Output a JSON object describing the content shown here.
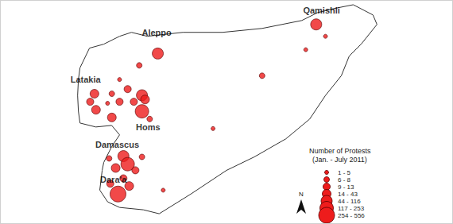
{
  "chart_data": {
    "type": "bubble_map",
    "legend_title": [
      "Number of Protests",
      "(Jan. - July 2011)"
    ],
    "size_classes": [
      "1 - 5",
      "6 - 8",
      "9 - 13",
      "14 - 43",
      "44 - 116",
      "117 - 253",
      "254 - 556"
    ],
    "color": "#ee1c1c",
    "tick_labels": false,
    "north_label": "N",
    "cities": [
      {
        "name": "Qamishli",
        "lon": 41.37,
        "lat": 37.42
      },
      {
        "name": "Aleppo",
        "lon": 37.1,
        "lat": 36.84
      },
      {
        "name": "Latakia",
        "lon": 35.26,
        "lat": 35.61
      },
      {
        "name": "Homs",
        "lon": 36.88,
        "lat": 34.37
      },
      {
        "name": "Damascus",
        "lon": 36.08,
        "lat": 33.92
      },
      {
        "name": "Dara'a",
        "lon": 35.98,
        "lat": 32.99
      }
    ],
    "points": [
      {
        "lon": 41.23,
        "lat": 37.05,
        "bin": "44 - 116"
      },
      {
        "lon": 41.47,
        "lat": 36.74,
        "bin": "1 - 5"
      },
      {
        "lon": 40.96,
        "lat": 36.39,
        "bin": "1 - 5"
      },
      {
        "lon": 39.83,
        "lat": 35.71,
        "bin": "6 - 8"
      },
      {
        "lon": 38.56,
        "lat": 34.33,
        "bin": "1 - 5"
      },
      {
        "lon": 37.13,
        "lat": 36.29,
        "bin": "44 - 116"
      },
      {
        "lon": 36.65,
        "lat": 35.98,
        "bin": "6 - 8"
      },
      {
        "lon": 36.14,
        "lat": 35.61,
        "bin": "1 - 5"
      },
      {
        "lon": 36.35,
        "lat": 35.36,
        "bin": "9 - 13"
      },
      {
        "lon": 35.49,
        "lat": 35.24,
        "bin": "14 - 43"
      },
      {
        "lon": 35.38,
        "lat": 35.03,
        "bin": "9 - 13"
      },
      {
        "lon": 35.53,
        "lat": 34.82,
        "bin": "14 - 43"
      },
      {
        "lon": 35.94,
        "lat": 35.24,
        "bin": "6 - 8"
      },
      {
        "lon": 36.14,
        "lat": 35.03,
        "bin": "9 - 13"
      },
      {
        "lon": 35.83,
        "lat": 34.99,
        "bin": "1 - 5"
      },
      {
        "lon": 36.72,
        "lat": 35.2,
        "bin": "44 - 116"
      },
      {
        "lon": 36.51,
        "lat": 35.03,
        "bin": "9 - 13"
      },
      {
        "lon": 36.8,
        "lat": 35.09,
        "bin": "14 - 43"
      },
      {
        "lon": 36.72,
        "lat": 34.78,
        "bin": "117 - 253"
      },
      {
        "lon": 35.94,
        "lat": 34.62,
        "bin": "14 - 43"
      },
      {
        "lon": 36.92,
        "lat": 34.58,
        "bin": "6 - 8"
      },
      {
        "lon": 36.24,
        "lat": 33.61,
        "bin": "44 - 116"
      },
      {
        "lon": 36.35,
        "lat": 33.4,
        "bin": "117 - 253"
      },
      {
        "lon": 36.04,
        "lat": 33.3,
        "bin": "14 - 43"
      },
      {
        "lon": 36.55,
        "lat": 33.24,
        "bin": "9 - 13"
      },
      {
        "lon": 36.72,
        "lat": 33.59,
        "bin": "6 - 8"
      },
      {
        "lon": 35.87,
        "lat": 33.55,
        "bin": "6 - 8"
      },
      {
        "lon": 36.1,
        "lat": 32.62,
        "bin": "254 - 556"
      },
      {
        "lon": 36.39,
        "lat": 32.83,
        "bin": "14 - 43"
      },
      {
        "lon": 35.9,
        "lat": 32.89,
        "bin": "9 - 13"
      },
      {
        "lon": 36.24,
        "lat": 33.03,
        "bin": "9 - 13"
      },
      {
        "lon": 37.27,
        "lat": 32.72,
        "bin": "1 - 5"
      }
    ]
  }
}
